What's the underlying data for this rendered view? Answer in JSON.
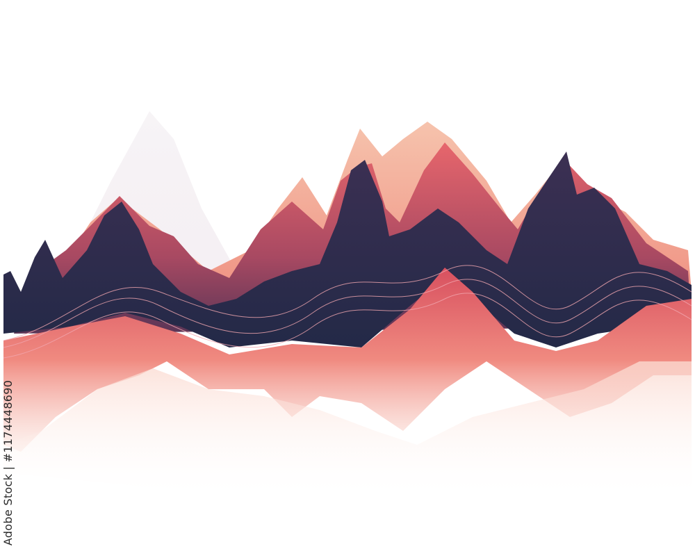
{
  "artwork": {
    "subject": "layered abstract mountain waveform",
    "colors": {
      "navy": "#2b2a4c",
      "plum": "#6b3a5a",
      "coral": "#e5616a",
      "salmon": "#f08a80",
      "peach": "#f7c1a6",
      "blush": "#fbe3dc",
      "mist": "#ece6ea"
    }
  },
  "watermark": {
    "text": "Adobe Stock | #1174448690"
  }
}
